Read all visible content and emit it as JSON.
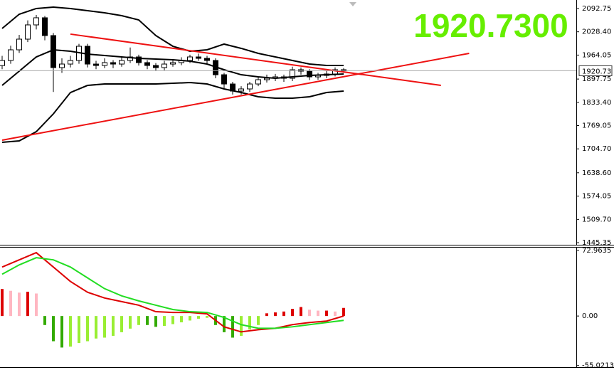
{
  "chart_data": [
    {
      "type": "candlestick",
      "title": "1920.7300",
      "title_color": "#66ee00",
      "xlim": [
        -0.25,
        67.25
      ],
      "ylim": [
        1439.5,
        2106.5
      ],
      "yticks": [
        2092.75,
        {
          "value": 2028.4,
          "label": "2028.40"
        },
        1964.05,
        1897.75,
        {
          "value": 1833.4,
          "label": "1833.40"
        },
        1769.05,
        {
          "value": 1704.7,
          "label": "1704.70"
        },
        {
          "value": 1638.6,
          "label": "1638.60"
        },
        1574.05,
        {
          "value": 1509.7,
          "label": "1509.70"
        },
        1445.35
      ],
      "last_price": {
        "value": 1920.73,
        "label": "1920.73"
      },
      "bull_color": "#ffffff",
      "bear_color": "#000000",
      "open": [
        1935.0,
        1949.1,
        1978.6,
        2008.1,
        2047.5,
        2067.2,
        2018.0,
        1929.4,
        1939.2,
        1949.1,
        1988.4,
        1939.2,
        1935.3,
        1943.2,
        1939.2,
        1949.1,
        1958.9,
        1943.2,
        1935.3,
        1929.4,
        1939.2,
        1943.2,
        1949.1,
        1958.9,
        1955.0,
        1949.1,
        1909.7,
        1884.1,
        1864.5,
        1870.4,
        1884.1,
        1896.0,
        1899.9,
        1903.8,
        1899.9,
        1923.5,
        1919.6,
        1903.8,
        1907.8,
        1911.7,
        1923.5
      ],
      "high": [
        1962,
        1990,
        2020,
        2060,
        2075,
        2072,
        2025,
        1955,
        1962,
        1995,
        1995,
        1948,
        1955,
        1950,
        1960,
        1985,
        1965,
        1950,
        1942,
        1948,
        1952,
        1958,
        1965,
        1968,
        1962,
        1955,
        1915,
        1890,
        1878,
        1890,
        1905,
        1910,
        1912,
        1910,
        1932,
        1930,
        1925,
        1915,
        1920,
        1930,
        1928
      ],
      "low": [
        1925,
        1940,
        1970,
        2000,
        2035,
        2005,
        1862,
        1915,
        1930,
        1940,
        1930,
        1925,
        1928,
        1928,
        1932,
        1942,
        1935,
        1925,
        1920,
        1922,
        1932,
        1936,
        1942,
        1948,
        1940,
        1900,
        1872,
        1855,
        1855,
        1862,
        1878,
        1888,
        1892,
        1890,
        1892,
        1910,
        1895,
        1896,
        1900,
        1905,
        1915
      ],
      "close": [
        1949.1,
        1978.6,
        2008.1,
        2047.5,
        2067.2,
        2018.0,
        1929.4,
        1939.2,
        1949.1,
        1988.4,
        1939.2,
        1935.3,
        1943.2,
        1939.2,
        1949.1,
        1958.9,
        1943.2,
        1935.3,
        1929.4,
        1939.2,
        1943.2,
        1949.1,
        1958.9,
        1955.0,
        1949.1,
        1909.7,
        1884.1,
        1864.5,
        1870.4,
        1884.1,
        1896.0,
        1899.9,
        1903.8,
        1899.9,
        1923.5,
        1919.6,
        1903.8,
        1907.8,
        1911.7,
        1923.5,
        1920.73
      ],
      "band_x": [
        0,
        2,
        4,
        6,
        8,
        10,
        12,
        14,
        16,
        18,
        20,
        22,
        24,
        26,
        28,
        30,
        32,
        34,
        36,
        38,
        40
      ],
      "bands": [
        {
          "color": "#000000",
          "values": [
            2037.7,
            2077.0,
            2092.8,
            2096.7,
            2092.8,
            2086.8,
            2081.0,
            2073.1,
            2061.3,
            2018.0,
            1988.4,
            1974.7,
            1978.6,
            1994.4,
            1982.6,
            1968.8,
            1958.9,
            1949.1,
            1939.2,
            1935.3,
            1935.3
          ]
        },
        {
          "color": "#000000",
          "values": [
            1880.2,
            1919.6,
            1958.9,
            1978.6,
            1974.7,
            1966.8,
            1962.9,
            1958.9,
            1955.0,
            1953.0,
            1951.1,
            1947.1,
            1939.2,
            1923.5,
            1909.7,
            1903.8,
            1899.9,
            1903.8,
            1907.8,
            1909.7,
            1911.7
          ]
        },
        {
          "color": "#000000",
          "values": [
            1722.8,
            1726.7,
            1752.3,
            1801.5,
            1860.5,
            1880.2,
            1884.1,
            1884.1,
            1884.1,
            1884.1,
            1886.1,
            1888.0,
            1884.1,
            1870.4,
            1860.5,
            1848.7,
            1844.8,
            1844.8,
            1848.7,
            1860.5,
            1864.5
          ]
        }
      ],
      "trendlines": [
        {
          "color": "#ee1111",
          "x": [
            8,
            51.4
          ],
          "y": [
            2022.0,
            1880.2
          ]
        },
        {
          "color": "#ee1111",
          "x": [
            0,
            54.7
          ],
          "y": [
            1728.7,
            1968.8
          ]
        }
      ]
    },
    {
      "type": "macd",
      "xlim": [
        -0.25,
        67.25
      ],
      "ylim": [
        -56.8,
        74.4
      ],
      "yticks": [
        72.9635,
        {
          "value": 0,
          "label": "0.00"
        },
        -55.0213
      ],
      "histogram": [
        30,
        28,
        26,
        27,
        25,
        -10,
        -28,
        -35,
        -34,
        -30,
        -28,
        -25,
        -24,
        -22,
        -18,
        -14,
        -10,
        -10,
        -12,
        -11,
        -9,
        -7,
        -5,
        -3,
        -2,
        -10,
        -18,
        -24,
        -22,
        -15,
        -10,
        3,
        4,
        5,
        8,
        10,
        7,
        6,
        6,
        5,
        9
      ],
      "pos_rising_color": "#dd0000",
      "pos_falling_color": "#ffb6c1",
      "neg_falling_color": "#33aa00",
      "neg_rising_color": "#99ee33",
      "line_x": [
        0,
        2,
        4,
        6,
        8,
        10,
        12,
        14,
        16,
        18,
        20,
        22,
        24,
        26,
        28,
        30,
        32,
        34,
        36,
        38,
        40
      ],
      "lines": [
        {
          "color": "#dd0000",
          "values": [
            54.4,
            62.4,
            70.4,
            54.4,
            38.4,
            26.4,
            20.0,
            16.0,
            12.0,
            4.8,
            4.0,
            4.0,
            2.4,
            -12.0,
            -17.6,
            -15.2,
            -13.6,
            -9.6,
            -7.2,
            -5.6,
            0.0
          ]
        },
        {
          "color": "#22dd22",
          "values": [
            46.4,
            56.8,
            64.8,
            62.4,
            54.4,
            42.4,
            30.4,
            22.4,
            16.8,
            12.0,
            7.2,
            4.8,
            4.0,
            -1.6,
            -9.6,
            -13.6,
            -13.6,
            -12.0,
            -9.6,
            -7.2,
            -4.8
          ]
        }
      ]
    }
  ]
}
